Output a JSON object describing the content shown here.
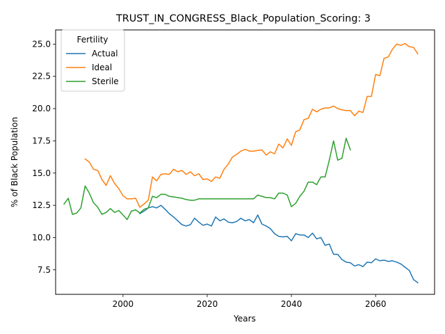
{
  "chart_data": {
    "type": "line",
    "title": "TRUST_IN_CONGRESS_Black_Population_Scoring: 3",
    "xlabel": "Years",
    "ylabel": "% of Black Population",
    "xlim": [
      1984,
      2074
    ],
    "ylim": [
      5.6,
      26.1
    ],
    "x_ticks": [
      2000,
      2020,
      2040,
      2060
    ],
    "y_ticks": [
      7.5,
      10.0,
      12.5,
      15.0,
      17.5,
      20.0,
      22.5,
      25.0
    ],
    "x_tick_labels": [
      "2000",
      "2020",
      "2040",
      "2060"
    ],
    "y_tick_labels": [
      "7.5",
      "10.0",
      "12.5",
      "15.0",
      "17.5",
      "20.0",
      "22.5",
      "25.0"
    ],
    "grid": false,
    "legend": {
      "title": "Fertility",
      "position": "top-left"
    },
    "series": [
      {
        "name": "Actual",
        "color": "#1f77b4",
        "x": [
          2004,
          2005,
          2006,
          2007,
          2008,
          2009,
          2010,
          2011,
          2012,
          2013,
          2014,
          2015,
          2016,
          2017,
          2018,
          2019,
          2020,
          2021,
          2022,
          2023,
          2024,
          2025,
          2026,
          2027,
          2028,
          2029,
          2030,
          2031,
          2032,
          2033,
          2034,
          2035,
          2036,
          2037,
          2038,
          2039,
          2040,
          2041,
          2042,
          2043,
          2044,
          2045,
          2046,
          2047,
          2048,
          2049,
          2050,
          2051,
          2052,
          2053,
          2054,
          2055,
          2056,
          2057,
          2058,
          2059,
          2060,
          2061,
          2062,
          2063,
          2064,
          2065,
          2066,
          2067,
          2068,
          2069,
          2070
        ],
        "values": [
          11.85,
          12.05,
          12.3,
          12.4,
          12.3,
          12.5,
          12.2,
          11.85,
          11.6,
          11.3,
          11.0,
          10.9,
          11.0,
          11.5,
          11.2,
          10.95,
          11.05,
          10.9,
          11.6,
          11.3,
          11.45,
          11.2,
          11.15,
          11.25,
          11.5,
          11.3,
          11.4,
          11.15,
          11.75,
          11.05,
          10.9,
          10.7,
          10.3,
          10.1,
          10.05,
          10.1,
          9.75,
          10.3,
          10.2,
          10.2,
          10.0,
          10.35,
          9.9,
          10.0,
          9.4,
          9.5,
          8.7,
          8.7,
          8.3,
          8.1,
          8.05,
          7.8,
          7.9,
          7.75,
          8.1,
          8.05,
          8.35,
          8.2,
          8.25,
          8.15,
          8.2,
          8.1,
          7.95,
          7.7,
          7.45,
          6.75,
          6.5
        ]
      },
      {
        "name": "Ideal",
        "color": "#ff7f0e",
        "x": [
          1991,
          1992,
          1993,
          1994,
          1995,
          1996,
          1997,
          1998,
          1999,
          2000,
          2001,
          2002,
          2003,
          2004,
          2005,
          2006,
          2007,
          2008,
          2009,
          2010,
          2011,
          2012,
          2013,
          2014,
          2015,
          2016,
          2017,
          2018,
          2019,
          2020,
          2021,
          2022,
          2023,
          2024,
          2025,
          2026,
          2027,
          2028,
          2029,
          2030,
          2031,
          2032,
          2033,
          2034,
          2035,
          2036,
          2037,
          2038,
          2039,
          2040,
          2041,
          2042,
          2043,
          2044,
          2045,
          2046,
          2047,
          2048,
          2049,
          2050,
          2051,
          2052,
          2053,
          2054,
          2055,
          2056,
          2057,
          2058,
          2059,
          2060,
          2061,
          2062,
          2063,
          2064,
          2065,
          2066,
          2067,
          2068,
          2069,
          2070
        ],
        "values": [
          16.1,
          15.85,
          15.3,
          15.2,
          14.5,
          14.05,
          14.8,
          14.2,
          13.8,
          13.25,
          13.0,
          13.0,
          13.05,
          12.35,
          12.6,
          12.9,
          14.7,
          14.4,
          14.9,
          14.95,
          14.9,
          15.3,
          15.1,
          15.2,
          14.9,
          15.1,
          14.8,
          14.95,
          14.5,
          14.55,
          14.35,
          14.7,
          14.6,
          15.3,
          15.7,
          16.25,
          16.45,
          16.7,
          16.85,
          16.7,
          16.7,
          16.75,
          16.8,
          16.4,
          16.65,
          16.5,
          17.25,
          16.95,
          17.65,
          17.15,
          18.2,
          18.35,
          19.15,
          19.25,
          19.95,
          19.75,
          19.95,
          20.05,
          20.05,
          20.2,
          20.0,
          19.9,
          19.85,
          19.85,
          19.45,
          19.8,
          19.7,
          20.95,
          20.95,
          22.65,
          22.55,
          23.9,
          24.0,
          24.6,
          25.0,
          24.9,
          25.05,
          24.8,
          24.75,
          24.25
        ]
      },
      {
        "name": "Sterile",
        "color": "#2ca02c",
        "x": [
          1986,
          1987,
          1988,
          1989,
          1990,
          1991,
          1992,
          1993,
          1994,
          1995,
          1996,
          1997,
          1998,
          1999,
          2000,
          2001,
          2002,
          2003,
          2004,
          2005,
          2006,
          2007,
          2008,
          2009,
          2010,
          2011,
          2012,
          2013,
          2014,
          2015,
          2016,
          2017,
          2018,
          2019,
          2020,
          2021,
          2022,
          2023,
          2024,
          2025,
          2026,
          2027,
          2028,
          2029,
          2030,
          2031,
          2032,
          2033,
          2034,
          2035,
          2036,
          2037,
          2038,
          2039,
          2040,
          2041,
          2042,
          2043,
          2044,
          2045,
          2046,
          2047,
          2048,
          2049,
          2050,
          2051,
          2052,
          2053,
          2054
        ],
        "values": [
          12.6,
          13.05,
          11.8,
          11.9,
          12.3,
          14.0,
          13.45,
          12.7,
          12.35,
          11.8,
          11.95,
          12.25,
          11.95,
          12.1,
          11.75,
          11.4,
          12.05,
          12.15,
          11.9,
          12.2,
          12.3,
          13.2,
          13.1,
          13.35,
          13.35,
          13.2,
          13.15,
          13.1,
          13.05,
          12.95,
          12.9,
          12.9,
          13.0,
          13.0,
          13.0,
          13.0,
          13.0,
          13.0,
          13.0,
          13.0,
          13.0,
          13.0,
          13.0,
          13.0,
          13.0,
          13.0,
          13.3,
          13.2,
          13.1,
          13.1,
          13.0,
          13.45,
          13.45,
          13.3,
          12.4,
          12.65,
          13.2,
          13.6,
          14.3,
          14.3,
          14.1,
          14.7,
          14.7,
          16.0,
          17.5,
          16.0,
          16.15,
          17.7,
          16.8
        ]
      }
    ]
  }
}
